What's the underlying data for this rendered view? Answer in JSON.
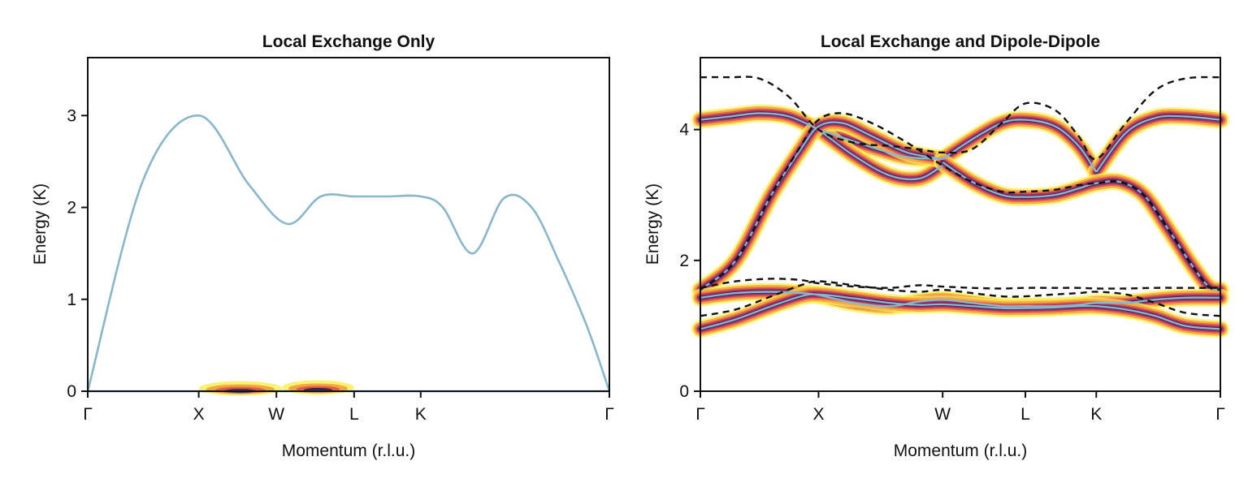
{
  "colors": {
    "line": "#8ab6cc",
    "dashed": "#111111",
    "heat": [
      "#f7f05a",
      "#f6a63a",
      "#e25a4a",
      "#9a2f6a",
      "#2a1a4a"
    ]
  },
  "chart_data": [
    {
      "type": "line",
      "title": "Local Exchange Only",
      "xlabel": "Momentum (r.l.u.)",
      "ylabel": "Energy (K)",
      "xticks": [
        "Γ",
        "X",
        "W",
        "L",
        "K",
        "Γ"
      ],
      "xtick_positions": [
        0,
        1,
        1.7,
        2.4,
        3.0,
        4.7
      ],
      "xlim": [
        0,
        4.7
      ],
      "ylim": [
        0,
        3.63
      ],
      "yticks": [
        "0",
        "1",
        "2",
        "3"
      ],
      "series": [
        {
          "style": "solid",
          "x": [
            0,
            0.5,
            1.0,
            1.45,
            1.8,
            2.1,
            2.4,
            2.7,
            3.0,
            3.2,
            3.47,
            3.75,
            4.0,
            4.25,
            4.5,
            4.7
          ],
          "y": [
            0,
            2.3,
            3.0,
            2.25,
            1.82,
            2.12,
            2.12,
            2.12,
            2.12,
            2.0,
            1.5,
            2.1,
            2.0,
            1.4,
            0.7,
            0
          ]
        },
        {
          "style": "solid",
          "x": [
            0,
            4.7
          ],
          "y": [
            0,
            0
          ]
        }
      ],
      "intensity_regions": [
        {
          "x": [
            1.0,
            1.75
          ],
          "y": 0.03
        },
        {
          "x": [
            1.75,
            2.4
          ],
          "y": 0.04
        }
      ]
    },
    {
      "type": "line",
      "title": "Local Exchange and Dipole-Dipole",
      "xlabel": "Momentum (r.l.u.)",
      "ylabel": "Energy (K)",
      "xticks": [
        "Γ",
        "X",
        "W",
        "L",
        "K",
        "Γ"
      ],
      "xtick_positions": [
        0,
        1,
        2.05,
        2.75,
        3.35,
        4.4
      ],
      "xlim": [
        0,
        4.4
      ],
      "ylim": [
        0,
        5.1
      ],
      "yticks": [
        "0",
        "2",
        "4"
      ],
      "series": [
        {
          "style": "solid",
          "x": [
            0,
            0.25,
            0.5,
            0.75,
            1.0
          ],
          "y": [
            4.15,
            4.2,
            4.25,
            4.2,
            4.0
          ]
        },
        {
          "style": "solid",
          "x": [
            1.0,
            1.25,
            1.5,
            1.75,
            2.05
          ],
          "y": [
            4.0,
            3.85,
            3.7,
            3.58,
            3.55
          ]
        },
        {
          "style": "solid",
          "x": [
            1.0,
            1.3,
            1.6,
            1.85,
            2.05
          ],
          "y": [
            4.0,
            3.6,
            3.3,
            3.25,
            3.45
          ]
        },
        {
          "style": "solid",
          "x": [
            0,
            0.3,
            0.6,
            0.85,
            1.0,
            1.2,
            1.45,
            1.75,
            2.05
          ],
          "y": [
            1.55,
            2.0,
            3.0,
            3.7,
            4.05,
            4.1,
            3.9,
            3.65,
            3.55
          ]
        },
        {
          "style": "solid",
          "x": [
            2.05,
            2.3,
            2.55,
            2.75,
            3.0,
            3.2,
            3.35
          ],
          "y": [
            3.55,
            3.85,
            4.1,
            4.15,
            4.05,
            3.75,
            3.35
          ]
        },
        {
          "style": "solid",
          "x": [
            3.35,
            3.6,
            3.85,
            4.1,
            4.4
          ],
          "y": [
            3.35,
            3.95,
            4.18,
            4.2,
            4.15
          ]
        },
        {
          "style": "solid",
          "x": [
            2.05,
            2.3,
            2.55,
            2.75,
            3.0,
            3.2,
            3.35,
            3.55,
            3.75,
            3.95,
            4.15,
            4.3,
            4.4
          ],
          "y": [
            3.5,
            3.2,
            3.0,
            2.97,
            3.0,
            3.1,
            3.18,
            3.2,
            3.0,
            2.5,
            1.95,
            1.6,
            1.55
          ]
        },
        {
          "style": "solid",
          "x": [
            0,
            0.3,
            0.6,
            0.85,
            1.0,
            1.3,
            1.6,
            1.85,
            2.05,
            2.3,
            2.55,
            2.75,
            3.0,
            3.2,
            3.35,
            3.6,
            3.85,
            4.1,
            4.4
          ],
          "y": [
            1.43,
            1.5,
            1.52,
            1.5,
            1.47,
            1.35,
            1.3,
            1.37,
            1.4,
            1.35,
            1.3,
            1.3,
            1.3,
            1.32,
            1.35,
            1.35,
            1.4,
            1.43,
            1.43
          ]
        },
        {
          "style": "solid",
          "x": [
            0,
            0.3,
            0.6,
            0.85,
            1.0,
            1.3,
            1.6,
            1.85,
            2.05,
            2.3,
            2.55,
            2.75,
            3.0,
            3.2,
            3.35,
            3.6,
            3.85,
            4.1,
            4.4
          ],
          "y": [
            0.95,
            1.1,
            1.3,
            1.45,
            1.48,
            1.42,
            1.35,
            1.32,
            1.33,
            1.3,
            1.27,
            1.27,
            1.28,
            1.3,
            1.3,
            1.25,
            1.15,
            1.0,
            0.95
          ]
        },
        {
          "style": "dashed",
          "x": [
            0,
            0.25,
            0.5,
            0.75,
            1.0,
            1.3,
            1.6,
            1.85,
            2.05,
            2.3,
            2.55,
            2.75,
            3.0,
            3.2,
            3.35,
            3.6,
            3.85,
            4.1,
            4.4
          ],
          "y": [
            4.8,
            4.8,
            4.78,
            4.5,
            4.0,
            3.8,
            3.75,
            3.7,
            3.65,
            3.7,
            4.1,
            4.4,
            4.3,
            3.9,
            3.55,
            4.1,
            4.6,
            4.78,
            4.8
          ]
        },
        {
          "style": "dashed",
          "x": [
            0,
            0.3,
            0.6,
            0.85,
            1.0,
            1.2,
            1.45,
            1.75,
            2.05,
            2.3,
            2.55,
            2.75,
            3.0,
            3.2,
            3.35,
            3.55,
            3.75,
            3.95,
            4.15,
            4.3,
            4.4
          ],
          "y": [
            1.55,
            2.0,
            3.0,
            3.75,
            4.15,
            4.25,
            4.1,
            3.8,
            3.45,
            3.2,
            3.05,
            3.05,
            3.08,
            3.15,
            3.18,
            3.2,
            3.0,
            2.5,
            1.95,
            1.6,
            1.55
          ]
        },
        {
          "style": "dashed",
          "x": [
            0,
            0.3,
            0.6,
            0.85,
            1.0,
            1.3,
            1.6,
            1.85,
            2.05,
            2.3,
            2.55,
            2.75,
            3.0,
            3.2,
            3.35,
            3.6,
            3.85,
            4.1,
            4.4
          ],
          "y": [
            1.58,
            1.68,
            1.72,
            1.7,
            1.65,
            1.6,
            1.58,
            1.62,
            1.6,
            1.58,
            1.57,
            1.58,
            1.58,
            1.58,
            1.57,
            1.57,
            1.58,
            1.58,
            1.58
          ]
        },
        {
          "style": "dashed",
          "x": [
            0,
            0.3,
            0.6,
            0.85,
            1.0,
            1.3,
            1.6,
            1.85,
            2.05,
            2.3,
            2.55,
            2.75,
            3.0,
            3.2,
            3.35,
            3.6,
            3.85,
            4.1,
            4.4
          ],
          "y": [
            1.15,
            1.25,
            1.45,
            1.62,
            1.68,
            1.62,
            1.55,
            1.52,
            1.55,
            1.5,
            1.45,
            1.45,
            1.48,
            1.5,
            1.52,
            1.48,
            1.35,
            1.2,
            1.15
          ]
        }
      ],
      "band_width": 0.3
    }
  ]
}
